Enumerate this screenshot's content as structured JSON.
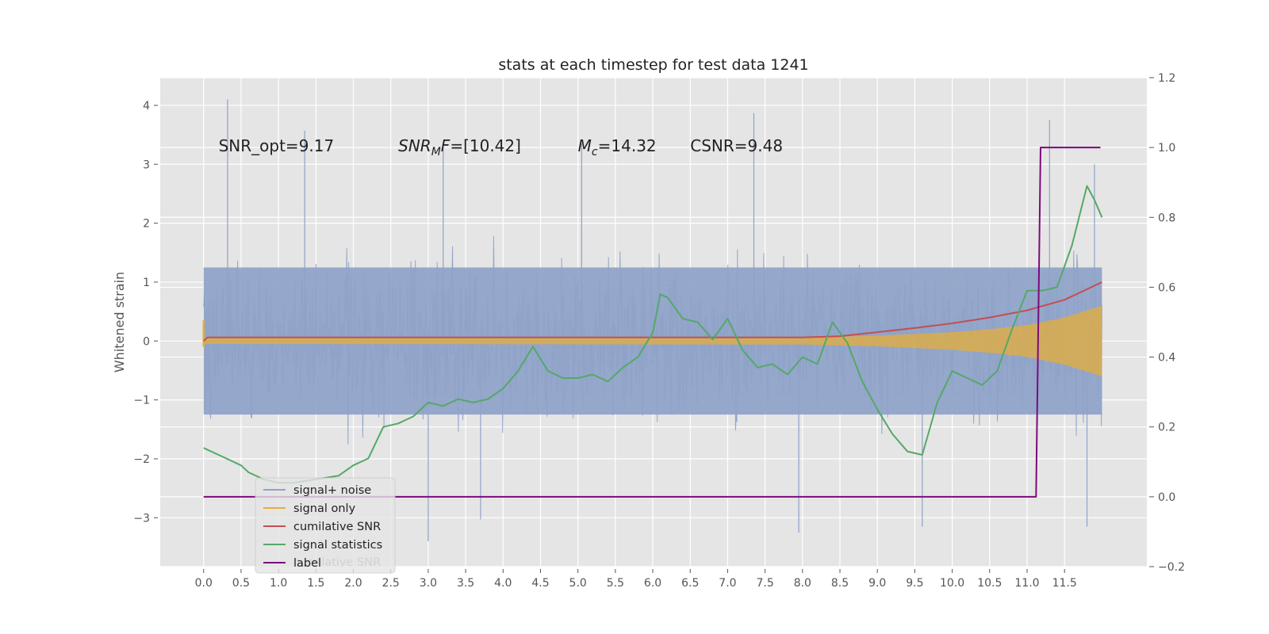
{
  "chart_data": {
    "type": "line",
    "title": "stats at each timestep for test data 1241",
    "xlabel": "",
    "ylabel": "Whitened strain",
    "ylabel_right": "",
    "xlim": [
      -0.58,
      12.6
    ],
    "ylim": [
      -3.83,
      4.47
    ],
    "ylim_right": [
      -0.2,
      1.2
    ],
    "x_ticks": [
      "0.0",
      "0.5",
      "1.0",
      "1.5",
      "2.0",
      "2.5",
      "3.0",
      "3.5",
      "4.0",
      "4.5",
      "5.0",
      "5.5",
      "6.0",
      "6.5",
      "7.0",
      "7.5",
      "8.0",
      "8.5",
      "9.0",
      "9.5",
      "10.0",
      "10.5",
      "11.0",
      "11.5"
    ],
    "y_ticks": [
      -3,
      -2,
      -1,
      0,
      1,
      2,
      3,
      4
    ],
    "y_ticks_right": [
      -0.2,
      0.0,
      0.2,
      0.4,
      0.6,
      0.8,
      1.0,
      1.2
    ],
    "y_tick_labels": [
      "−3",
      "−2",
      "−1",
      "0",
      "1",
      "2",
      "3",
      "4"
    ],
    "y_tick_labels_right": [
      "−0.2",
      "0.0",
      "0.2",
      "0.4",
      "0.6",
      "0.8",
      "1.0",
      "1.2"
    ],
    "grid": true,
    "legend_position": "lower-left",
    "annotations": [
      {
        "text": "SNR_opt=9.17",
        "x": 0.2,
        "y": 3.22
      },
      {
        "text": "SNR",
        "sub": "M",
        "rest": "F=[10.42]",
        "italic": true,
        "x": 2.6,
        "y": 3.22
      },
      {
        "text": "M",
        "sub": "c",
        "rest": "=14.32",
        "italic": true,
        "x": 5.0,
        "y": 3.22
      },
      {
        "text": "CSNR=9.48",
        "x": 6.5,
        "y": 3.22
      }
    ],
    "series": [
      {
        "name": "signal+ noise",
        "axis": "left",
        "color": "#8ea2c8",
        "style": "noise",
        "x_range": [
          0.0,
          12.0
        ],
        "typical_range": [
          -1.6,
          1.6
        ],
        "peaks": [
          [
            0.32,
            4.1
          ],
          [
            1.35,
            3.57
          ],
          [
            3.2,
            3.32
          ],
          [
            5.05,
            3.35
          ],
          [
            7.35,
            3.87
          ],
          [
            11.3,
            3.75
          ],
          [
            11.9,
            3.0
          ],
          [
            3.0,
            -3.4
          ],
          [
            3.7,
            -3.03
          ],
          [
            7.95,
            -3.25
          ],
          [
            9.6,
            -3.15
          ],
          [
            11.8,
            -3.15
          ]
        ]
      },
      {
        "name": "signal only",
        "axis": "left",
        "color": "#e5ae38",
        "style": "chirp",
        "x": [
          0.0,
          8.0,
          9.0,
          10.0,
          10.5,
          11.0,
          11.5,
          12.0
        ],
        "amplitude": [
          0.05,
          0.06,
          0.09,
          0.15,
          0.2,
          0.27,
          0.4,
          0.6
        ]
      },
      {
        "name": "cumilative SNR",
        "axis": "left",
        "color": "#c44e52",
        "x": [
          0.0,
          0.05,
          8.0,
          8.5,
          9.0,
          9.5,
          10.0,
          10.5,
          11.0,
          11.5,
          12.0
        ],
        "y": [
          0.0,
          0.06,
          0.06,
          0.08,
          0.15,
          0.22,
          0.3,
          0.4,
          0.52,
          0.7,
          1.0
        ]
      },
      {
        "name": "signal statistics",
        "axis": "right",
        "color": "#55a868",
        "x": [
          0.0,
          0.1,
          0.2,
          0.3,
          0.4,
          0.5,
          0.6,
          0.8,
          1.0,
          1.2,
          1.5,
          1.8,
          2.0,
          2.2,
          2.4,
          2.6,
          2.8,
          3.0,
          3.2,
          3.4,
          3.6,
          3.8,
          4.0,
          4.2,
          4.4,
          4.6,
          4.8,
          5.0,
          5.2,
          5.4,
          5.6,
          5.8,
          6.0,
          6.1,
          6.2,
          6.4,
          6.6,
          6.8,
          7.0,
          7.2,
          7.4,
          7.6,
          7.8,
          8.0,
          8.2,
          8.4,
          8.6,
          8.8,
          9.0,
          9.2,
          9.4,
          9.6,
          9.8,
          10.0,
          10.2,
          10.4,
          10.6,
          10.8,
          11.0,
          11.2,
          11.4,
          11.6,
          11.8,
          11.9,
          12.0
        ],
        "y": [
          0.14,
          0.13,
          0.12,
          0.11,
          0.1,
          0.09,
          0.07,
          0.05,
          0.04,
          0.04,
          0.05,
          0.06,
          0.09,
          0.11,
          0.2,
          0.21,
          0.23,
          0.27,
          0.26,
          0.28,
          0.27,
          0.28,
          0.31,
          0.36,
          0.43,
          0.36,
          0.34,
          0.34,
          0.35,
          0.33,
          0.37,
          0.4,
          0.47,
          0.58,
          0.57,
          0.51,
          0.5,
          0.45,
          0.51,
          0.42,
          0.37,
          0.38,
          0.35,
          0.4,
          0.38,
          0.5,
          0.44,
          0.33,
          0.25,
          0.18,
          0.13,
          0.12,
          0.27,
          0.36,
          0.34,
          0.32,
          0.36,
          0.48,
          0.59,
          0.59,
          0.6,
          0.72,
          0.89,
          0.85,
          0.8
        ]
      },
      {
        "name": "label",
        "axis": "right",
        "color": "#7b0a7b",
        "x": [
          0.0,
          11.12,
          11.18,
          11.98
        ],
        "y": [
          0.0,
          0.0,
          1.0,
          1.0
        ]
      }
    ],
    "legend_ghost_text": "cumilative SNR"
  }
}
